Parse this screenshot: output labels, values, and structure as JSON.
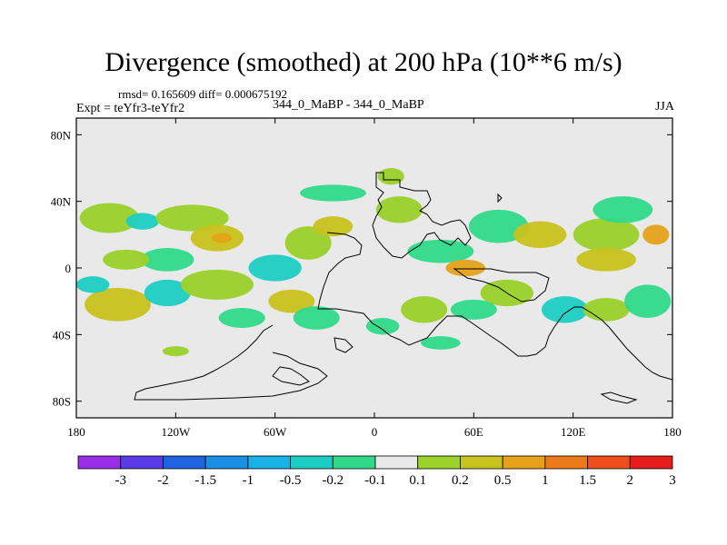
{
  "chart_data": {
    "type": "heatmap",
    "title": "Divergence (smoothed) at 200 hPa (10**6 m/s)",
    "stats": "rmsd= 0.165609 diff= 0.000675192",
    "left_label": "Expt = teYfr3-teYfr2",
    "center_label": "344_0_MaBP - 344_0_MaBP",
    "right_label": "JJA",
    "xlim": [
      -180,
      180
    ],
    "ylim": [
      -90,
      90
    ],
    "x_ticks": [
      "180",
      "120W",
      "60W",
      "0",
      "60E",
      "120E",
      "180"
    ],
    "y_ticks": [
      "80N",
      "40N",
      "0",
      "40S",
      "80S"
    ],
    "colorbar_labels": [
      "-3",
      "-2",
      "-1.5",
      "-1",
      "-0.5",
      "-0.2",
      "-0.1",
      "0.1",
      "0.2",
      "0.5",
      "1",
      "1.5",
      "2",
      "3"
    ],
    "colorbar_colors": [
      "#9a2ee6",
      "#5a3be8",
      "#1f63e0",
      "#1b8fe6",
      "#18b2e6",
      "#1ccdc3",
      "#30d98a",
      "#e9e9e9",
      "#9ad12a",
      "#c8c21f",
      "#e5a21a",
      "#ec7a1a",
      "#ee4d1c",
      "#e51d1d"
    ],
    "blobs": [
      {
        "lon": -160,
        "lat": 30,
        "rx": 18,
        "ry": 9,
        "level": 8
      },
      {
        "lon": -140,
        "lat": 28,
        "rx": 10,
        "ry": 5,
        "level": 5
      },
      {
        "lon": -110,
        "lat": 30,
        "rx": 22,
        "ry": 8,
        "level": 8
      },
      {
        "lon": -95,
        "lat": 18,
        "rx": 16,
        "ry": 8,
        "level": 9
      },
      {
        "lon": -92,
        "lat": 18,
        "rx": 6,
        "ry": 3,
        "level": 10
      },
      {
        "lon": -125,
        "lat": 5,
        "rx": 16,
        "ry": 7,
        "level": 6
      },
      {
        "lon": -150,
        "lat": 5,
        "rx": 14,
        "ry": 6,
        "level": 8
      },
      {
        "lon": -155,
        "lat": -22,
        "rx": 20,
        "ry": 10,
        "level": 9
      },
      {
        "lon": -125,
        "lat": -15,
        "rx": 14,
        "ry": 8,
        "level": 5
      },
      {
        "lon": -60,
        "lat": 0,
        "rx": 16,
        "ry": 8,
        "level": 5
      },
      {
        "lon": -40,
        "lat": 15,
        "rx": 14,
        "ry": 10,
        "level": 8
      },
      {
        "lon": -25,
        "lat": 25,
        "rx": 12,
        "ry": 6,
        "level": 9
      },
      {
        "lon": -50,
        "lat": -20,
        "rx": 14,
        "ry": 7,
        "level": 9
      },
      {
        "lon": -35,
        "lat": -30,
        "rx": 14,
        "ry": 7,
        "level": 6
      },
      {
        "lon": -95,
        "lat": -10,
        "rx": 22,
        "ry": 9,
        "level": 8
      },
      {
        "lon": -80,
        "lat": -30,
        "rx": 14,
        "ry": 6,
        "level": 6
      },
      {
        "lon": -25,
        "lat": 45,
        "rx": 20,
        "ry": 5,
        "level": 6
      },
      {
        "lon": 15,
        "lat": 35,
        "rx": 14,
        "ry": 8,
        "level": 8
      },
      {
        "lon": 40,
        "lat": 10,
        "rx": 20,
        "ry": 7,
        "level": 6
      },
      {
        "lon": 55,
        "lat": 0,
        "rx": 12,
        "ry": 5,
        "level": 10
      },
      {
        "lon": 75,
        "lat": 25,
        "rx": 18,
        "ry": 10,
        "level": 6
      },
      {
        "lon": 100,
        "lat": 20,
        "rx": 16,
        "ry": 8,
        "level": 9
      },
      {
        "lon": 140,
        "lat": 20,
        "rx": 20,
        "ry": 10,
        "level": 8
      },
      {
        "lon": 150,
        "lat": 35,
        "rx": 18,
        "ry": 8,
        "level": 6
      },
      {
        "lon": 170,
        "lat": 20,
        "rx": 8,
        "ry": 6,
        "level": 10
      },
      {
        "lon": 140,
        "lat": 5,
        "rx": 18,
        "ry": 7,
        "level": 9
      },
      {
        "lon": 115,
        "lat": -25,
        "rx": 14,
        "ry": 8,
        "level": 5
      },
      {
        "lon": 140,
        "lat": -25,
        "rx": 14,
        "ry": 7,
        "level": 8
      },
      {
        "lon": 165,
        "lat": -20,
        "rx": 14,
        "ry": 10,
        "level": 6
      },
      {
        "lon": 80,
        "lat": -15,
        "rx": 16,
        "ry": 8,
        "level": 8
      },
      {
        "lon": 60,
        "lat": -25,
        "rx": 14,
        "ry": 6,
        "level": 6
      },
      {
        "lon": 30,
        "lat": -25,
        "rx": 14,
        "ry": 8,
        "level": 8
      },
      {
        "lon": 40,
        "lat": -45,
        "rx": 12,
        "ry": 4,
        "level": 6
      },
      {
        "lon": -120,
        "lat": -50,
        "rx": 8,
        "ry": 3,
        "level": 8
      },
      {
        "lon": 10,
        "lat": 55,
        "rx": 8,
        "ry": 5,
        "level": 8
      },
      {
        "lon": 5,
        "lat": -35,
        "rx": 10,
        "ry": 5,
        "level": 6
      },
      {
        "lon": -170,
        "lat": -10,
        "rx": 10,
        "ry": 5,
        "level": 5
      }
    ]
  }
}
